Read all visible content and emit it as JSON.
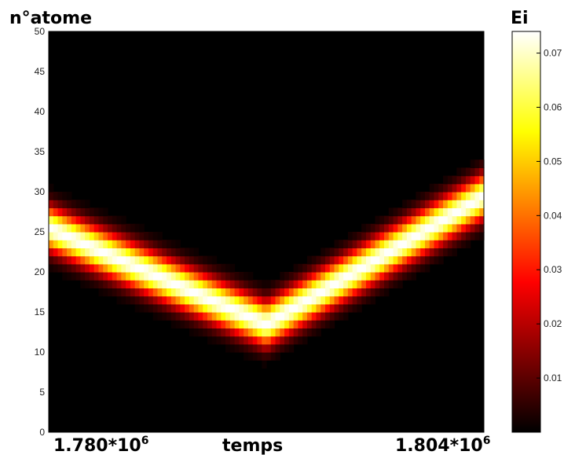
{
  "chart_data": {
    "type": "heatmap",
    "title": "",
    "ylabel": "n°atome",
    "xlabel": "temps",
    "x_tick_labels": {
      "start_mantissa": "1.780*10",
      "start_exp": "6",
      "end_mantissa": "1.804*10",
      "end_exp": "6"
    },
    "ylim": [
      0,
      50
    ],
    "yticks": [
      0,
      5,
      10,
      15,
      20,
      25,
      30,
      35,
      40,
      45,
      50
    ],
    "colorbar": {
      "label": "Ei",
      "range": [
        0,
        0.074
      ],
      "ticks": [
        0.01,
        0.02,
        0.03,
        0.04,
        0.05,
        0.06,
        0.07
      ],
      "tick_labels": [
        "0.01",
        "0.02",
        "0.03",
        "0.04",
        "0.05",
        "0.06",
        "0.07"
      ],
      "colormap": "hot"
    },
    "n_time_steps": 96,
    "pulse": {
      "peak_value": 0.074,
      "width_atoms": 2.6,
      "center_start": 25.5,
      "center_min": 13.5,
      "min_at_fraction": 0.5,
      "center_end": 29.5
    }
  }
}
